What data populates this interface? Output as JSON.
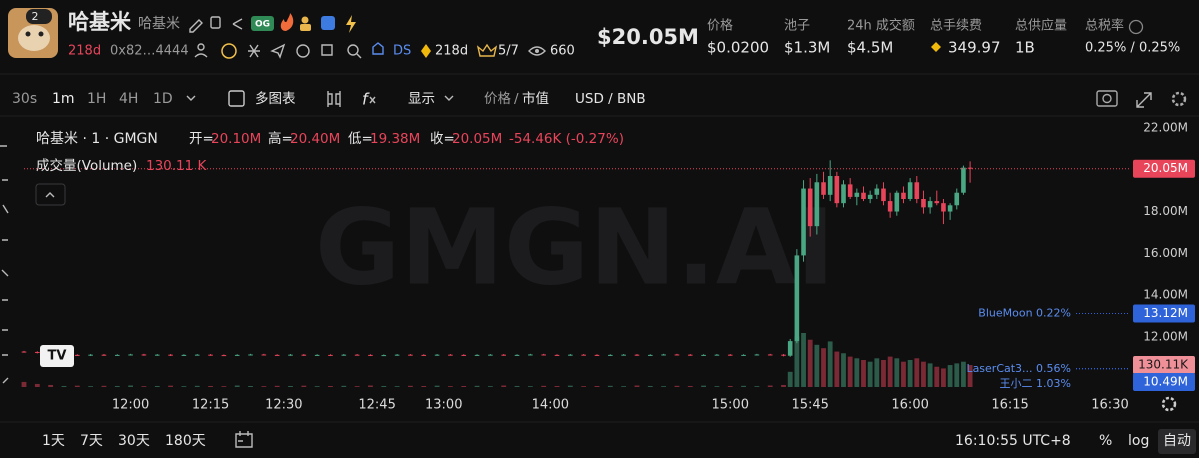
{
  "header": {
    "avatar_badge": "2",
    "name": "哈基米",
    "alias": "哈基米",
    "badge": "OG",
    "age": "218d",
    "address": "0x82…4444",
    "ds": "DS",
    "holders_age": "218d",
    "holders_ratio": "5/7",
    "views": "660",
    "market_cap": "$20.05M",
    "stats": [
      {
        "label": "价格",
        "value": "$0.0200"
      },
      {
        "label": "池子",
        "value": "$1.3M"
      },
      {
        "label": "24h 成交额",
        "value": "$4.5M"
      },
      {
        "label": "总手续费",
        "value": "349.97"
      },
      {
        "label": "总供应量",
        "value": "1B"
      },
      {
        "label": "总税率",
        "value": "0.25% / 0.25%"
      }
    ]
  },
  "toolbar": {
    "intervals": [
      "30s",
      "1m",
      "1H",
      "4H",
      "1D"
    ],
    "multi_chart": "多图表",
    "display": "显示",
    "price": "价格",
    "separator": "/",
    "market_value": "市值",
    "currency": "USD / BNB"
  },
  "legend": {
    "title": "哈基米 · 1 · GMGN",
    "ohlc": [
      {
        "label": "开=",
        "value": "20.10M"
      },
      {
        "label": "高=",
        "value": "20.40M"
      },
      {
        "label": "低=",
        "value": "19.38M"
      },
      {
        "label": "收=",
        "value": "20.05M"
      }
    ],
    "change": "-54.46K (-0.27%)",
    "volume_label": "成交量(Volume)",
    "volume_value": "130.11 K"
  },
  "watermark": "GMGN.AI",
  "chart_data": {
    "type": "candlestick",
    "grid": false,
    "up_color": "#4aa783",
    "down_color": "#e8455a",
    "x": [
      2,
      4,
      6,
      8,
      10,
      12,
      14,
      16,
      18,
      20,
      22,
      24,
      26,
      28,
      30,
      32,
      34,
      36,
      38,
      40,
      42,
      44,
      46,
      48,
      50,
      52,
      54,
      56,
      58,
      60,
      62,
      64,
      66,
      68,
      70,
      72,
      74,
      76,
      78,
      80,
      82,
      84,
      86,
      88,
      90,
      92,
      94,
      96,
      98,
      100,
      102,
      104,
      106,
      108,
      110,
      112,
      114,
      116,
      117,
      118,
      119,
      120,
      121,
      122,
      123,
      124,
      125,
      126,
      127,
      128,
      129,
      130,
      131,
      132,
      133,
      134,
      135,
      136,
      137,
      138,
      139,
      140,
      141,
      142,
      143,
      144
    ],
    "open": [
      11.3,
      11.28,
      11.24,
      11.12,
      11.14,
      11.12,
      11.15,
      11.13,
      11.14,
      11.16,
      11.13,
      11.15,
      11.12,
      11.14,
      11.15,
      11.13,
      11.12,
      11.14,
      11.16,
      11.14,
      11.13,
      11.15,
      11.12,
      11.14,
      11.13,
      11.15,
      11.14,
      11.12,
      11.13,
      11.15,
      11.14,
      11.13,
      11.15,
      11.14,
      11.12,
      11.14,
      11.15,
      11.13,
      11.14,
      11.16,
      11.14,
      11.13,
      11.15,
      11.14,
      11.12,
      11.14,
      11.15,
      11.13,
      11.14,
      11.16,
      11.15,
      11.13,
      11.14,
      11.15,
      11.13,
      11.14,
      11.16,
      11.15,
      11.1,
      11.8,
      15.9,
      19.1,
      17.3,
      19.4,
      18.8,
      19.7,
      18.4,
      19.3,
      18.7,
      18.9,
      18.6,
      18.8,
      19.1,
      18.5,
      18.0,
      18.9,
      18.6,
      19.4,
      18.6,
      18.2,
      18.5,
      18.4,
      18.0,
      18.3,
      18.9,
      20.1
    ],
    "high": [
      11.33,
      11.31,
      11.27,
      11.17,
      11.17,
      11.18,
      11.18,
      11.17,
      11.19,
      11.19,
      11.18,
      11.18,
      11.17,
      11.18,
      11.18,
      11.16,
      11.17,
      11.19,
      11.19,
      11.17,
      11.18,
      11.18,
      11.17,
      11.17,
      11.18,
      11.18,
      11.17,
      11.16,
      11.18,
      11.18,
      11.17,
      11.18,
      11.18,
      11.17,
      11.17,
      11.18,
      11.18,
      11.17,
      11.19,
      11.19,
      11.17,
      11.18,
      11.18,
      11.17,
      11.17,
      11.18,
      11.18,
      11.17,
      11.19,
      11.19,
      11.18,
      11.17,
      11.18,
      11.18,
      11.17,
      11.19,
      11.19,
      11.18,
      11.9,
      16.2,
      19.5,
      19.6,
      19.8,
      19.9,
      20.45,
      19.9,
      19.5,
      19.6,
      19.1,
      19.2,
      19.0,
      19.3,
      19.4,
      18.9,
      19.0,
      19.2,
      19.6,
      19.7,
      19.0,
      18.7,
      19.0,
      18.6,
      18.4,
      19.1,
      20.2,
      20.4
    ],
    "low": [
      11.25,
      11.21,
      11.09,
      11.09,
      11.09,
      11.09,
      11.1,
      11.1,
      11.11,
      11.1,
      11.1,
      11.09,
      11.09,
      11.11,
      11.1,
      11.09,
      11.09,
      11.11,
      11.11,
      11.1,
      11.1,
      11.09,
      11.09,
      11.1,
      11.1,
      11.11,
      11.09,
      11.09,
      11.1,
      11.11,
      11.1,
      11.1,
      11.11,
      11.09,
      11.09,
      11.11,
      11.1,
      11.1,
      11.11,
      11.11,
      11.1,
      11.1,
      11.11,
      11.09,
      11.09,
      11.11,
      11.1,
      11.1,
      11.11,
      11.12,
      11.1,
      11.1,
      11.11,
      11.1,
      11.1,
      11.11,
      11.12,
      11.07,
      11.05,
      11.7,
      15.6,
      16.8,
      16.9,
      18.6,
      18.5,
      18.2,
      18.2,
      18.6,
      18.3,
      18.5,
      18.4,
      18.6,
      18.3,
      17.7,
      17.8,
      18.4,
      18.5,
      18.4,
      17.9,
      17.9,
      18.3,
      17.4,
      17.6,
      18.1,
      18.8,
      19.38
    ],
    "close": [
      11.28,
      11.24,
      11.12,
      11.14,
      11.12,
      11.15,
      11.13,
      11.14,
      11.16,
      11.13,
      11.15,
      11.12,
      11.14,
      11.15,
      11.13,
      11.12,
      11.14,
      11.16,
      11.14,
      11.13,
      11.15,
      11.12,
      11.14,
      11.13,
      11.15,
      11.14,
      11.12,
      11.13,
      11.15,
      11.14,
      11.13,
      11.15,
      11.14,
      11.12,
      11.14,
      11.15,
      11.13,
      11.14,
      11.16,
      11.14,
      11.13,
      11.15,
      11.14,
      11.12,
      11.14,
      11.15,
      11.13,
      11.14,
      11.16,
      11.15,
      11.13,
      11.14,
      11.15,
      11.13,
      11.14,
      11.16,
      11.15,
      11.1,
      11.8,
      15.9,
      19.1,
      17.3,
      19.4,
      18.8,
      19.7,
      18.4,
      19.3,
      18.7,
      18.9,
      18.6,
      18.8,
      19.1,
      18.5,
      18.0,
      18.9,
      18.6,
      19.4,
      18.6,
      18.2,
      18.5,
      18.4,
      18.0,
      18.3,
      18.9,
      20.1,
      20.05
    ],
    "volume": [
      30,
      18,
      12,
      6,
      8,
      5,
      7,
      6,
      9,
      5,
      6,
      8,
      5,
      7,
      6,
      5,
      9,
      6,
      5,
      7,
      6,
      8,
      5,
      6,
      7,
      5,
      9,
      6,
      5,
      7,
      6,
      8,
      5,
      6,
      7,
      5,
      9,
      6,
      5,
      7,
      6,
      8,
      5,
      6,
      7,
      5,
      9,
      6,
      5,
      7,
      6,
      8,
      5,
      6,
      7,
      5,
      9,
      12,
      90,
      300,
      320,
      280,
      250,
      230,
      270,
      210,
      200,
      180,
      170,
      160,
      150,
      170,
      160,
      180,
      170,
      150,
      160,
      170,
      150,
      140,
      120,
      110,
      130,
      140,
      150,
      130.11
    ],
    "xlim": [
      2,
      168
    ],
    "ylim": [
      9.46,
      22.38
    ],
    "volume_lim": [
      0,
      1600
    ],
    "yticks": [
      {
        "value": 22,
        "label": "22.00M"
      },
      {
        "value": 18,
        "label": "18.00M"
      },
      {
        "value": 16,
        "label": "16.00M"
      },
      {
        "value": 14,
        "label": "14.00M"
      },
      {
        "value": 12,
        "label": "12.00M"
      }
    ],
    "xticks": [
      {
        "value": 18,
        "label": "12:00"
      },
      {
        "value": 30,
        "label": "12:15"
      },
      {
        "value": 41,
        "label": "12:30"
      },
      {
        "value": 55,
        "label": "12:45"
      },
      {
        "value": 65,
        "label": "13:00"
      },
      {
        "value": 81,
        "label": "14:00"
      },
      {
        "value": 108,
        "label": "15:00"
      },
      {
        "value": 120,
        "label": "15:45"
      },
      {
        "value": 135,
        "label": "16:00"
      },
      {
        "value": 150,
        "label": "16:15"
      },
      {
        "value": 165,
        "label": "16:30"
      }
    ],
    "price_line": {
      "value": 20.05,
      "label": "20.05M",
      "color": "#e8455a"
    },
    "volume_line": {
      "value": 130.11,
      "label": "130.11K",
      "color": "#ef8f98"
    },
    "marker_color": "#2f63d9",
    "markers": [
      {
        "label": "BlueMoon 0.22%",
        "value": 13.12,
        "value_label": "13.12M"
      },
      {
        "label": "LaserCat3... 0.56%",
        "value": 10.47
      },
      {
        "label": "王小二 1.03%",
        "value": 10.49,
        "value_label": "10.49M"
      }
    ]
  },
  "footer": {
    "ranges": [
      "1天",
      "7天",
      "30天",
      "180天"
    ],
    "clock": "16:10:55 UTC+8",
    "percent": "%",
    "log": "log",
    "auto": "自动"
  }
}
